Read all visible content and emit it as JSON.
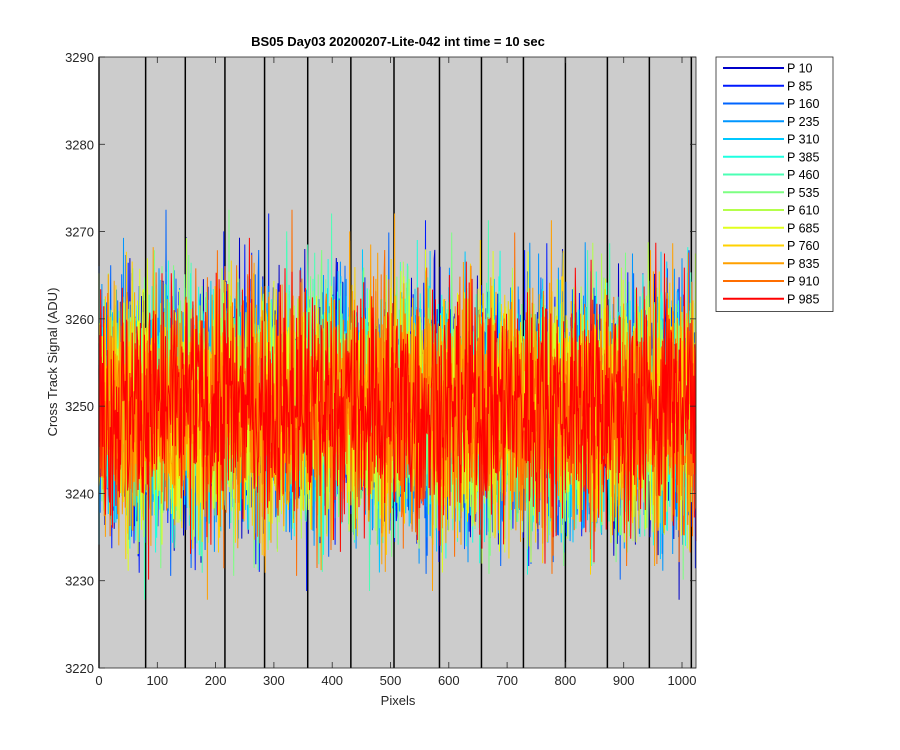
{
  "chart_data": {
    "type": "line",
    "title": "BS05 Day03 20200207-Lite-042 int time = 10 sec",
    "xlabel": "Pixels",
    "ylabel": "Cross Track Signal (ADU)",
    "xlim": [
      0,
      1024
    ],
    "ylim": [
      3220,
      3290
    ],
    "xticks": [
      0,
      100,
      200,
      300,
      400,
      500,
      600,
      700,
      800,
      900,
      1000
    ],
    "yticks": [
      3220,
      3230,
      3240,
      3250,
      3260,
      3270,
      3280,
      3290
    ],
    "xtick_labels": [
      "0",
      "100",
      "200",
      "300",
      "400",
      "500",
      "600",
      "700",
      "800",
      "900",
      "1000"
    ],
    "ytick_labels": [
      "3220",
      "3230",
      "3240",
      "3250",
      "3260",
      "3270",
      "3280",
      "3290"
    ],
    "background_color": "#cccccc",
    "grid": false,
    "vertical_markers": [
      0,
      80,
      148,
      216,
      284,
      358,
      432,
      506,
      584,
      656,
      728,
      800,
      872,
      944,
      1016
    ],
    "legend_position": "outside-top-right",
    "series_mean": 3250,
    "series_noise_sd": 7,
    "series": [
      {
        "name": "P 10",
        "color": "#0000c8"
      },
      {
        "name": "P 85",
        "color": "#0019ff"
      },
      {
        "name": "P 160",
        "color": "#0064ff"
      },
      {
        "name": "P 235",
        "color": "#0096ff"
      },
      {
        "name": "P 310",
        "color": "#00c8ff"
      },
      {
        "name": "P 385",
        "color": "#1effe1"
      },
      {
        "name": "P 460",
        "color": "#4bffb4"
      },
      {
        "name": "P 535",
        "color": "#7dff82"
      },
      {
        "name": "P 610",
        "color": "#b4ff4b"
      },
      {
        "name": "P 685",
        "color": "#e1ff1e"
      },
      {
        "name": "P 760",
        "color": "#ffd200"
      },
      {
        "name": "P 835",
        "color": "#ffa000"
      },
      {
        "name": "P 910",
        "color": "#ff6e00"
      },
      {
        "name": "P 985",
        "color": "#ff0000"
      }
    ]
  }
}
